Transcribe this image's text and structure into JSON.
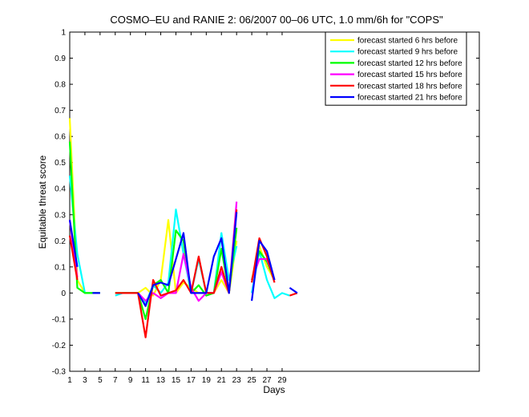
{
  "chart_data": {
    "type": "line",
    "title": "COSMO–EU and RANIE 2: 06/2007 00–06 UTC, 1.0 mm/6h for \"COPS\"",
    "xlabel": "Days",
    "ylabel": "Equitable threat score",
    "xlim": [
      1,
      55
    ],
    "ylim": [
      -0.3,
      1
    ],
    "x_ticks": [
      1,
      3,
      5,
      7,
      9,
      11,
      13,
      15,
      17,
      19,
      21,
      23,
      25,
      27,
      29
    ],
    "y_ticks": [
      -0.3,
      -0.2,
      -0.1,
      0,
      0.1,
      0.2,
      0.3,
      0.4,
      0.5,
      0.6,
      0.7,
      0.8,
      0.9,
      1
    ],
    "legend_position": "top-right",
    "grid": false,
    "series": [
      {
        "name": "forecast started 6 hrs before",
        "color": "#ffff00",
        "points": [
          [
            1,
            0.67
          ],
          [
            2,
            0.05
          ],
          [
            3,
            0.0
          ],
          [
            4,
            0.0
          ],
          [
            5,
            0.0
          ],
          [
            null,
            null
          ],
          [
            7,
            0.0
          ],
          [
            8,
            0.0
          ],
          [
            9,
            0.0
          ],
          [
            10,
            0.0
          ],
          [
            11,
            0.02
          ],
          [
            12,
            -0.01
          ],
          [
            13,
            0.05
          ],
          [
            14,
            0.28
          ],
          [
            15,
            0.0
          ],
          [
            16,
            0.04
          ],
          [
            17,
            0.02
          ],
          [
            18,
            0.0
          ],
          [
            19,
            0.0
          ],
          [
            20,
            0.0
          ],
          [
            21,
            0.05
          ],
          [
            22,
            0.0
          ],
          [
            23,
            0.2
          ],
          [
            null,
            null
          ],
          [
            25,
            0.05
          ],
          [
            26,
            0.18
          ],
          [
            27,
            0.1
          ],
          [
            28,
            0.05
          ]
        ]
      },
      {
        "name": "forecast started 9 hrs before",
        "color": "#00ffff",
        "points": [
          [
            1,
            0.45
          ],
          [
            2,
            0.15
          ],
          [
            3,
            0.0
          ],
          [
            4,
            0.0
          ],
          [
            5,
            0.0
          ],
          [
            null,
            null
          ],
          [
            7,
            -0.01
          ],
          [
            8,
            0.0
          ],
          [
            9,
            0.0
          ],
          [
            10,
            0.0
          ],
          [
            11,
            -0.04
          ],
          [
            12,
            0.03
          ],
          [
            13,
            0.0
          ],
          [
            14,
            0.04
          ],
          [
            15,
            0.32
          ],
          [
            16,
            0.15
          ],
          [
            17,
            0.0
          ],
          [
            18,
            0.13
          ],
          [
            19,
            0.0
          ],
          [
            20,
            0.0
          ],
          [
            21,
            0.23
          ],
          [
            22,
            0.05
          ],
          [
            23,
            0.18
          ],
          [
            null,
            null
          ],
          [
            25,
            0.0
          ],
          [
            26,
            0.16
          ],
          [
            27,
            0.05
          ],
          [
            28,
            -0.02
          ],
          [
            29,
            0.0
          ],
          [
            30,
            -0.01
          ]
        ]
      },
      {
        "name": "forecast started 12 hrs before",
        "color": "#00ff00",
        "points": [
          [
            1,
            0.58
          ],
          [
            2,
            0.02
          ],
          [
            3,
            0.0
          ],
          [
            4,
            0.0
          ],
          [
            5,
            0.0
          ],
          [
            null,
            null
          ],
          [
            7,
            0.0
          ],
          [
            8,
            0.0
          ],
          [
            9,
            0.0
          ],
          [
            10,
            0.0
          ],
          [
            11,
            -0.1
          ],
          [
            12,
            0.03
          ],
          [
            13,
            0.05
          ],
          [
            14,
            0.0
          ],
          [
            15,
            0.24
          ],
          [
            16,
            0.2
          ],
          [
            17,
            0.0
          ],
          [
            18,
            0.03
          ],
          [
            19,
            -0.01
          ],
          [
            20,
            0.0
          ],
          [
            21,
            0.17
          ],
          [
            22,
            0.0
          ],
          [
            23,
            0.25
          ],
          [
            null,
            null
          ],
          [
            25,
            0.05
          ],
          [
            26,
            0.16
          ],
          [
            27,
            0.12
          ],
          [
            28,
            0.05
          ]
        ]
      },
      {
        "name": "forecast started 15 hrs before",
        "color": "#ff00ff",
        "points": [
          [
            1,
            0.28
          ],
          [
            2,
            0.06
          ],
          [
            null,
            null
          ],
          [
            10,
            0.0
          ],
          [
            11,
            -0.03
          ],
          [
            12,
            0.0
          ],
          [
            13,
            -0.02
          ],
          [
            14,
            0.0
          ],
          [
            15,
            0.0
          ],
          [
            16,
            0.15
          ],
          [
            17,
            0.02
          ],
          [
            18,
            -0.03
          ],
          [
            19,
            0.0
          ],
          [
            20,
            0.0
          ],
          [
            21,
            0.08
          ],
          [
            22,
            0.0
          ],
          [
            23,
            0.35
          ],
          [
            null,
            null
          ],
          [
            25,
            0.05
          ],
          [
            26,
            0.13
          ],
          [
            27,
            0.13
          ],
          [
            28,
            0.05
          ]
        ]
      },
      {
        "name": "forecast started 18 hrs before",
        "color": "#ff0000",
        "points": [
          [
            1,
            0.22
          ],
          [
            2,
            0.05
          ],
          [
            null,
            null
          ],
          [
            7,
            0.0
          ],
          [
            8,
            0.0
          ],
          [
            9,
            0.0
          ],
          [
            10,
            0.0
          ],
          [
            11,
            -0.17
          ],
          [
            12,
            0.05
          ],
          [
            13,
            -0.01
          ],
          [
            14,
            0.0
          ],
          [
            15,
            0.01
          ],
          [
            16,
            0.05
          ],
          [
            17,
            0.0
          ],
          [
            18,
            0.14
          ],
          [
            19,
            0.0
          ],
          [
            20,
            0.0
          ],
          [
            21,
            0.1
          ],
          [
            22,
            0.0
          ],
          [
            23,
            0.32
          ],
          [
            null,
            null
          ],
          [
            25,
            0.04
          ],
          [
            26,
            0.21
          ],
          [
            27,
            0.14
          ],
          [
            28,
            0.04
          ],
          [
            null,
            null
          ],
          [
            30,
            -0.01
          ],
          [
            31,
            0.0
          ]
        ]
      },
      {
        "name": "forecast started 21 hrs before",
        "color": "#0000ff",
        "points": [
          [
            1,
            0.28
          ],
          [
            2,
            0.1
          ],
          [
            null,
            null
          ],
          [
            4,
            0.0
          ],
          [
            5,
            0.0
          ],
          [
            null,
            null
          ],
          [
            10,
            0.0
          ],
          [
            11,
            -0.05
          ],
          [
            12,
            0.03
          ],
          [
            13,
            0.04
          ],
          [
            14,
            0.03
          ],
          [
            15,
            0.13
          ],
          [
            16,
            0.23
          ],
          [
            17,
            0.0
          ],
          [
            18,
            0.0
          ],
          [
            19,
            0.0
          ],
          [
            20,
            0.14
          ],
          [
            21,
            0.21
          ],
          [
            22,
            0.0
          ],
          [
            23,
            0.31
          ],
          [
            null,
            null
          ],
          [
            25,
            -0.03
          ],
          [
            26,
            0.2
          ],
          [
            27,
            0.16
          ],
          [
            28,
            0.05
          ],
          [
            null,
            null
          ],
          [
            30,
            0.02
          ],
          [
            31,
            0.0
          ]
        ]
      }
    ]
  }
}
